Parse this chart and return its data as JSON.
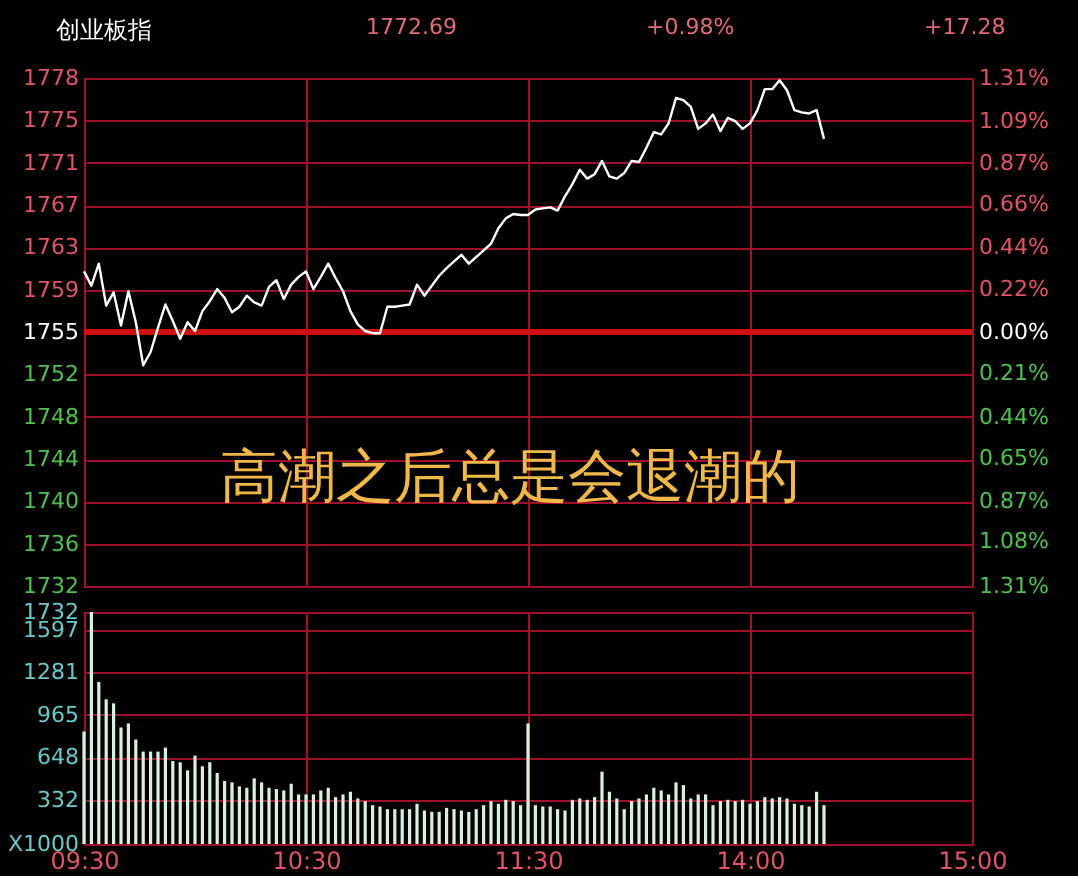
{
  "chart_data": [
    {
      "type": "line",
      "title": "创业板指",
      "annotations": [
        "1772.69",
        "+0.98%",
        "+17.28",
        "高潮之后总是会退潮的"
      ],
      "categories": [
        null,
        null,
        null,
        null,
        null,
        null,
        null,
        null,
        null,
        null,
        null,
        null,
        null,
        null,
        null,
        null,
        null,
        null,
        null,
        null,
        null,
        null,
        null,
        null,
        null,
        null,
        null,
        null,
        null,
        null,
        null,
        null,
        null,
        null,
        null,
        null,
        null,
        null,
        null,
        null,
        null,
        null,
        null,
        null,
        null,
        null,
        null,
        null,
        null,
        null,
        null,
        null,
        null,
        null,
        null,
        null,
        null,
        null,
        null,
        null,
        null,
        null,
        null,
        null,
        null,
        null,
        null,
        null,
        null,
        null,
        null,
        null,
        null,
        null,
        null,
        null,
        null,
        null,
        null,
        null,
        null,
        null,
        null,
        null,
        null,
        null,
        null,
        null,
        null,
        null,
        null,
        null,
        null,
        null,
        null,
        null,
        null,
        null,
        null,
        null,
        null,
        null,
        null,
        null,
        null,
        null,
        null,
        null,
        null,
        null,
        null,
        null,
        null,
        null,
        null,
        null,
        null,
        null,
        null,
        null,
        null
      ],
      "series": [
        {
          "color": "#ffffff",
          "values": [
            1760.9,
            1759.6,
            1761.6,
            1757.8,
            1759.0,
            1756.0,
            1759.1,
            1756.3,
            1752.4,
            1753.6,
            1755.8,
            1757.9,
            1756.4,
            1754.8,
            1756.3,
            1755.5,
            1757.3,
            1758.2,
            1759.3,
            1758.5,
            1757.2,
            1757.7,
            1758.7,
            1758.1,
            1757.8,
            1759.5,
            1760.1,
            1758.4,
            1759.7,
            1760.4,
            1760.9,
            1759.3,
            1760.4,
            1761.6,
            1760.3,
            1759.1,
            1757.3,
            1756.1,
            1755.5,
            1755.3,
            1755.3,
            1757.7,
            1757.7,
            1757.8,
            1757.9,
            1759.7,
            1758.7,
            1759.6,
            1760.5,
            1761.2,
            1761.8,
            1762.4,
            1761.6,
            1762.2,
            1762.8,
            1763.4,
            1764.8,
            1765.7,
            1766.1,
            1766.0,
            1766.0,
            1766.5,
            1766.6,
            1766.7,
            1766.4,
            1767.7,
            1768.8,
            1770.1,
            1769.3,
            1769.7,
            1770.9,
            1769.5,
            1769.3,
            1769.8,
            1770.9,
            1770.8,
            1772.1,
            1773.5,
            1773.3,
            1774.3,
            1776.6,
            1776.4,
            1775.8,
            1773.8,
            1774.3,
            1775.1,
            1773.6,
            1774.8,
            1774.5,
            1773.8,
            1774.3,
            1775.5,
            1777.4,
            1777.4,
            1778.2,
            1777.3,
            1775.5,
            1775.3,
            1775.2,
            1775.5,
            1772.9,
            null,
            null,
            null,
            null,
            null,
            null,
            null,
            null,
            null,
            null,
            null,
            null,
            null,
            null,
            null,
            null,
            null,
            null,
            null,
            null
          ]
        }
      ],
      "ylim": [
        1732.41,
        1778.41
      ],
      "yticks": [
        {
          "value": 1778.41,
          "label": "1778"
        },
        {
          "value": 1774.58,
          "label": "1775"
        },
        {
          "value": 1770.74,
          "label": "1771"
        },
        {
          "value": 1766.91,
          "label": "1767"
        },
        {
          "value": 1763.08,
          "label": "1763"
        },
        {
          "value": 1759.24,
          "label": "1759"
        },
        {
          "value": 1755.41,
          "label": "1755"
        },
        {
          "value": 1751.58,
          "label": "1752"
        },
        {
          "value": 1747.74,
          "label": "1748"
        },
        {
          "value": 1743.91,
          "label": "1744"
        },
        {
          "value": 1740.08,
          "label": "1740"
        },
        {
          "value": 1736.24,
          "label": "1736"
        },
        {
          "value": 1732.41,
          "label": "1732"
        }
      ],
      "y2lim": [
        -1.31,
        1.31
      ],
      "y2ticks": [
        {
          "value": 1.31,
          "label": "1.31%"
        },
        {
          "value": 1.09,
          "label": "1.09%"
        },
        {
          "value": 0.87,
          "label": "0.87%"
        },
        {
          "value": 0.66,
          "label": "0.66%"
        },
        {
          "value": 0.44,
          "label": "0.44%"
        },
        {
          "value": 0.22,
          "label": "0.22%"
        },
        {
          "value": 0,
          "label": "0.00%"
        },
        {
          "value": -0.21,
          "label": "0.21%"
        },
        {
          "value": -0.44,
          "label": "0.44%"
        },
        {
          "value": -0.65,
          "label": "0.65%"
        },
        {
          "value": -0.87,
          "label": "0.87%"
        },
        {
          "value": -1.08,
          "label": "1.08%"
        },
        {
          "value": -1.31,
          "label": "1.31%"
        }
      ],
      "ref_lines": [
        {
          "axis": "y",
          "value": 1755.41,
          "color": "#d01010"
        }
      ],
      "grid": true,
      "tick_labels": "y"
    },
    {
      "type": "bar",
      "categories": [
        "09:30",
        null,
        null,
        null,
        null,
        null,
        null,
        null,
        null,
        null,
        null,
        null,
        null,
        null,
        null,
        null,
        null,
        null,
        null,
        null,
        null,
        null,
        null,
        null,
        null,
        null,
        null,
        null,
        null,
        null,
        "10:30",
        null,
        null,
        null,
        null,
        null,
        null,
        null,
        null,
        null,
        null,
        null,
        null,
        null,
        null,
        null,
        null,
        null,
        null,
        null,
        null,
        null,
        null,
        null,
        null,
        null,
        null,
        null,
        null,
        null,
        "11:30",
        null,
        null,
        null,
        null,
        null,
        null,
        null,
        null,
        null,
        null,
        null,
        null,
        null,
        null,
        null,
        null,
        null,
        null,
        null,
        null,
        null,
        null,
        null,
        null,
        null,
        null,
        null,
        null,
        null,
        "14:00",
        null,
        null,
        null,
        null,
        null,
        null,
        null,
        null,
        null,
        null,
        null,
        null,
        null,
        null,
        null,
        null,
        null,
        null,
        null,
        null,
        null,
        null,
        null,
        null,
        null,
        null,
        null,
        null,
        null,
        "15:00"
      ],
      "values": [
        840,
        1732,
        1210,
        1080,
        1050,
        870,
        900,
        780,
        690,
        690,
        690,
        720,
        620,
        610,
        550,
        660,
        580,
        610,
        530,
        470,
        460,
        430,
        420,
        490,
        460,
        420,
        410,
        400,
        450,
        370,
        370,
        370,
        400,
        420,
        350,
        370,
        390,
        340,
        320,
        290,
        280,
        260,
        260,
        260,
        260,
        300,
        250,
        240,
        240,
        270,
        260,
        250,
        240,
        260,
        290,
        320,
        300,
        330,
        320,
        290,
        900,
        290,
        280,
        280,
        260,
        250,
        330,
        340,
        330,
        350,
        540,
        390,
        340,
        260,
        320,
        340,
        370,
        420,
        400,
        370,
        460,
        440,
        340,
        370,
        370,
        290,
        320,
        330,
        320,
        330,
        300,
        320,
        350,
        340,
        350,
        340,
        300,
        290,
        280,
        390,
        290,
        null,
        null,
        null,
        null,
        null,
        null,
        null,
        null,
        null,
        null,
        null,
        null,
        null,
        null,
        null,
        null,
        null,
        null,
        null,
        null
      ],
      "color": "#d8f0e0",
      "ylim": [
        0,
        1732
      ],
      "yticks": [
        {
          "value": 0,
          "label": "X1000"
        },
        332,
        648,
        965,
        1281,
        1597,
        1732
      ],
      "grid": true
    }
  ]
}
